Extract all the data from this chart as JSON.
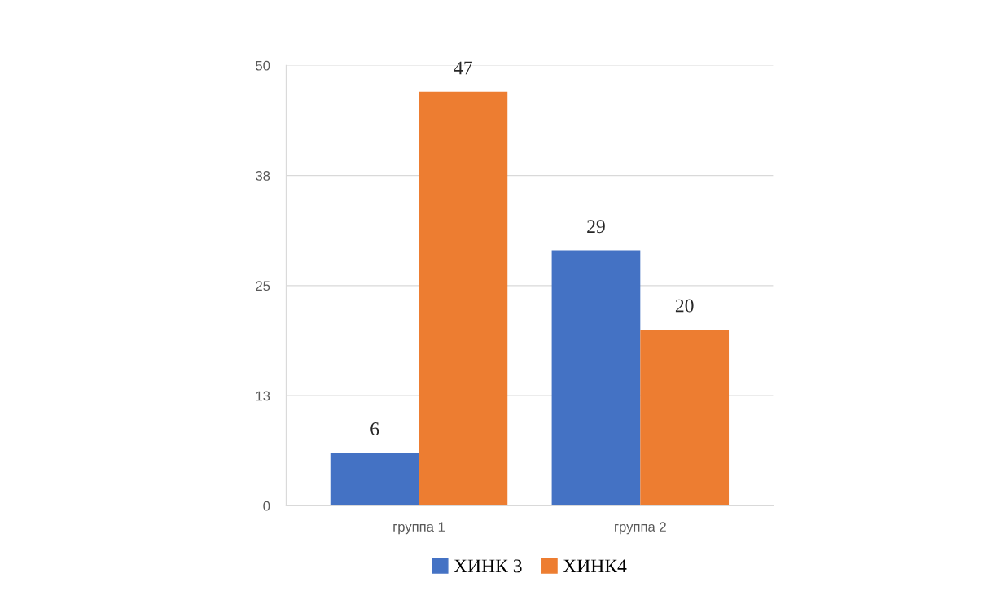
{
  "chart_data": {
    "type": "bar",
    "categories": [
      "группа 1",
      "группа 2"
    ],
    "series": [
      {
        "name": "ХИНК 3",
        "color": "#4472c4",
        "values": [
          6,
          29
        ]
      },
      {
        "name": "ХИНК4",
        "color": "#ed7d31",
        "values": [
          47,
          20
        ]
      }
    ],
    "ylim": [
      0,
      50
    ],
    "yticks": [
      0,
      {
        "value": 12.5,
        "label": "13"
      },
      25,
      {
        "value": 37.5,
        "label": "38"
      },
      50
    ],
    "grid": "y",
    "legend": "bottom",
    "data_labels": true
  }
}
